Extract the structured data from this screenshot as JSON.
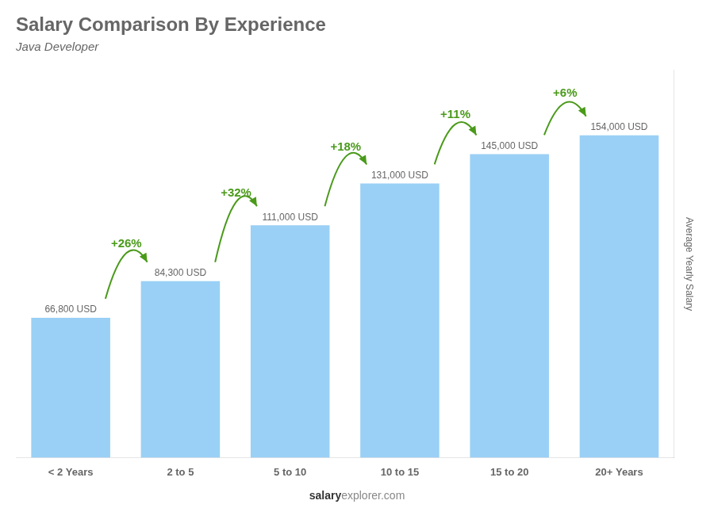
{
  "chart_data": {
    "type": "bar",
    "title": "Salary Comparison By Experience",
    "subtitle": "Java Developer",
    "y_label": "Average Yearly Salary",
    "footer": [
      "salary",
      "explorer.com"
    ],
    "categories": [
      "< 2 Years",
      "2 to 5",
      "5 to 10",
      "10 to 15",
      "15 to 20",
      "20+ Years"
    ],
    "values": [
      66800,
      84300,
      111000,
      131000,
      145000,
      154000
    ],
    "value_labels": [
      "66,800 USD",
      "84,300 USD",
      "111,000 USD",
      "131,000 USD",
      "145,000 USD",
      "154,000 USD"
    ],
    "data_labels": true,
    "annotations": [
      "+26%",
      "+32%",
      "+18%",
      "+11%",
      "+6%"
    ],
    "ylim": [
      0,
      185000
    ],
    "grid": false,
    "tick_labels": "x"
  }
}
